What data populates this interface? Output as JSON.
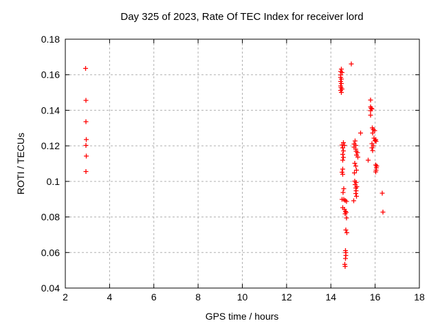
{
  "window": {
    "background": "#ffffff"
  },
  "colors": {
    "marker": "#ff0000",
    "grid": "#b0b0b0",
    "axis": "#000000",
    "text": "#000000"
  },
  "chart_data": {
    "type": "scatter",
    "title": "Day 325 of 2023, Rate Of TEC Index for receiver lord",
    "xlabel": "GPS time / hours",
    "ylabel": "ROTI / TECUs",
    "xlim": [
      2,
      18
    ],
    "ylim": [
      0.04,
      0.18
    ],
    "xticks": [
      2,
      4,
      6,
      8,
      10,
      12,
      14,
      16,
      18
    ],
    "xtick_labels": [
      "2",
      "4",
      "6",
      "8",
      "10",
      "12",
      "14",
      "16",
      "18"
    ],
    "yticks": [
      0.04,
      0.06,
      0.08,
      0.1,
      0.12,
      0.14,
      0.16,
      0.18
    ],
    "ytick_labels": [
      "0.04",
      "0.06",
      "0.08",
      "0.1",
      "0.12",
      "0.14",
      "0.16",
      "0.18"
    ],
    "grid": true,
    "grid_style": "dashed",
    "legend": "none",
    "marker": "plus",
    "marker_color": "#ff0000",
    "series": [
      {
        "name": "ROTI",
        "points": [
          [
            2.92,
            0.1635
          ],
          [
            2.93,
            0.1455
          ],
          [
            2.93,
            0.1335
          ],
          [
            2.95,
            0.1235
          ],
          [
            2.93,
            0.1202
          ],
          [
            2.94,
            0.1142
          ],
          [
            2.93,
            0.1055
          ],
          [
            14.93,
            0.166
          ],
          [
            14.48,
            0.1631
          ],
          [
            14.44,
            0.1618
          ],
          [
            14.51,
            0.1612
          ],
          [
            14.45,
            0.1599
          ],
          [
            14.45,
            0.1586
          ],
          [
            14.48,
            0.1576
          ],
          [
            14.45,
            0.1563
          ],
          [
            14.48,
            0.155
          ],
          [
            14.45,
            0.1537
          ],
          [
            14.46,
            0.1528
          ],
          [
            14.5,
            0.152
          ],
          [
            14.44,
            0.1511
          ],
          [
            14.47,
            0.15
          ],
          [
            15.8,
            0.1457
          ],
          [
            15.79,
            0.142
          ],
          [
            15.82,
            0.1412
          ],
          [
            15.85,
            0.1408
          ],
          [
            15.8,
            0.1398
          ],
          [
            15.8,
            0.1373
          ],
          [
            15.87,
            0.1302
          ],
          [
            15.92,
            0.1292
          ],
          [
            15.98,
            0.1285
          ],
          [
            15.89,
            0.1273
          ],
          [
            15.35,
            0.1272
          ],
          [
            15.95,
            0.1243
          ],
          [
            16.02,
            0.1236
          ],
          [
            15.99,
            0.123
          ],
          [
            16.05,
            0.1225
          ],
          [
            15.86,
            0.1212
          ],
          [
            15.92,
            0.12
          ],
          [
            15.86,
            0.1189
          ],
          [
            15.89,
            0.1174
          ],
          [
            15.69,
            0.1119
          ],
          [
            16.03,
            0.1092
          ],
          [
            16.08,
            0.1086
          ],
          [
            16.06,
            0.1077
          ],
          [
            16.04,
            0.1064
          ],
          [
            16.02,
            0.1053
          ],
          [
            16.32,
            0.0934
          ],
          [
            16.35,
            0.0828
          ],
          [
            14.56,
            0.1217
          ],
          [
            14.51,
            0.1204
          ],
          [
            14.61,
            0.1202
          ],
          [
            14.54,
            0.1189
          ],
          [
            14.56,
            0.1172
          ],
          [
            14.54,
            0.1153
          ],
          [
            14.57,
            0.1134
          ],
          [
            14.54,
            0.1119
          ],
          [
            14.53,
            0.107
          ],
          [
            14.51,
            0.1051
          ],
          [
            14.53,
            0.1041
          ],
          [
            14.58,
            0.0959
          ],
          [
            14.55,
            0.0937
          ],
          [
            14.51,
            0.0898
          ],
          [
            14.58,
            0.0898
          ],
          [
            14.65,
            0.0894
          ],
          [
            14.71,
            0.0888
          ],
          [
            14.53,
            0.0853
          ],
          [
            14.61,
            0.0843
          ],
          [
            14.66,
            0.0831
          ],
          [
            14.69,
            0.0825
          ],
          [
            14.64,
            0.0818
          ],
          [
            14.71,
            0.0795
          ],
          [
            14.68,
            0.0727
          ],
          [
            14.73,
            0.0712
          ],
          [
            14.66,
            0.0611
          ],
          [
            14.68,
            0.06
          ],
          [
            14.67,
            0.0583
          ],
          [
            14.66,
            0.0567
          ],
          [
            14.63,
            0.0534
          ],
          [
            14.65,
            0.0521
          ],
          [
            15.1,
            0.1228
          ],
          [
            15.05,
            0.1211
          ],
          [
            15.12,
            0.1203
          ],
          [
            15.05,
            0.1193
          ],
          [
            15.12,
            0.1182
          ],
          [
            15.14,
            0.1169
          ],
          [
            15.2,
            0.1161
          ],
          [
            15.16,
            0.1148
          ],
          [
            15.22,
            0.1137
          ],
          [
            15.08,
            0.1101
          ],
          [
            15.13,
            0.1086
          ],
          [
            15.15,
            0.1064
          ],
          [
            15.07,
            0.1048
          ],
          [
            15.08,
            0.1001
          ],
          [
            15.14,
            0.0993
          ],
          [
            15.1,
            0.0982
          ],
          [
            15.17,
            0.0971
          ],
          [
            15.12,
            0.0962
          ],
          [
            15.14,
            0.0948
          ],
          [
            15.12,
            0.0931
          ],
          [
            15.15,
            0.0916
          ],
          [
            15.03,
            0.0891
          ]
        ]
      }
    ]
  }
}
